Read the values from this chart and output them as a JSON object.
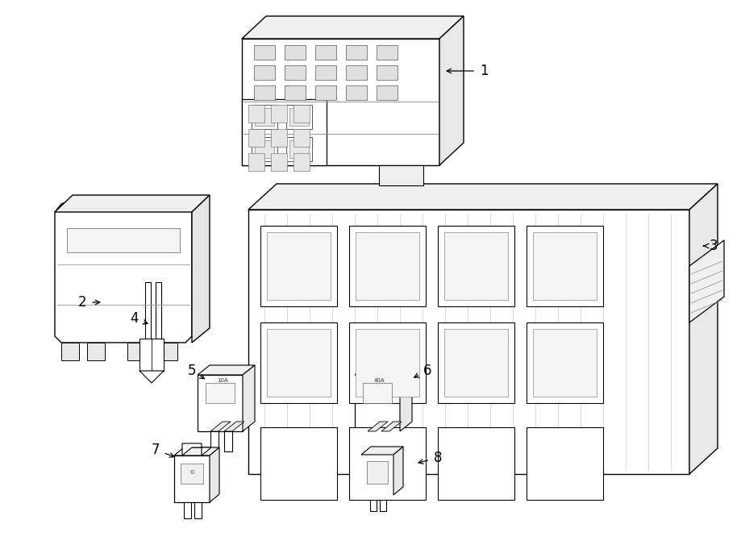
{
  "bg": "#ffffff",
  "ec": "#000000",
  "lw": 1.0,
  "lw_thin": 0.6,
  "fig_w": 9.0,
  "fig_h": 6.61,
  "dpi": 100
}
